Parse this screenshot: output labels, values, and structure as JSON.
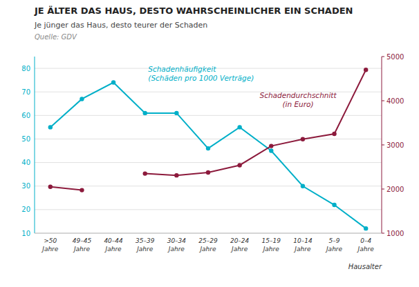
{
  "chart_data": {
    "type": "line",
    "title": "JE ÄLTER DAS HAUS, DESTO WAHRSCHEINLICHER EIN SCHADEN",
    "subtitle": "Je jünger das Haus, desto teurer der Schaden",
    "source": "Quelle: GDV",
    "xlabel": "Hausalter",
    "categories": [
      ">50\nJahre",
      "49–45\nJahre",
      "40–44\nJahre",
      "35–39\nJahre",
      "30–34\nJahre",
      "25–29\nJahre",
      "20–24\nJahre",
      "15–19\nJahre",
      "10–14\nJahre",
      "5–9\nJahre",
      "0–4\nJahre"
    ],
    "series": [
      {
        "name": "Schadenhäufigkeit\n(Schäden pro 1000 Verträge)",
        "color": "#00afc8",
        "marker": "circle",
        "values": [
          55,
          67,
          74,
          61,
          61,
          46,
          55,
          45,
          30,
          22,
          12
        ]
      },
      {
        "name": "Schadendurchschnitt\n(in Euro)",
        "color": "#8c1a3c",
        "marker": "circle",
        "axis": "y2",
        "values": [
          2050,
          1975,
          null,
          2350,
          2310,
          2375,
          2540,
          2975,
          3130,
          3250,
          4700
        ]
      }
    ],
    "ylim": [
      10,
      85
    ],
    "yticks": [
      10,
      20,
      30,
      40,
      50,
      60,
      70,
      80
    ],
    "y2lim": [
      1000,
      5000
    ],
    "y2ticks": [
      1000,
      2000,
      3000,
      4000,
      5000
    ],
    "grid": true
  }
}
